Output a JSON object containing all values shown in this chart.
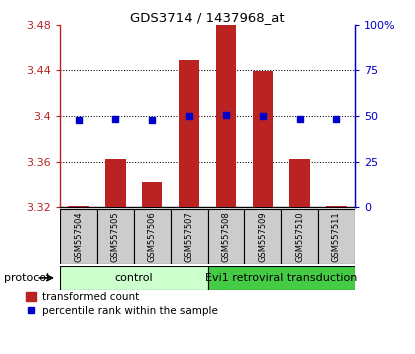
{
  "title": "GDS3714 / 1437968_at",
  "samples": [
    "GSM557504",
    "GSM557505",
    "GSM557506",
    "GSM557507",
    "GSM557508",
    "GSM557509",
    "GSM557510",
    "GSM557511"
  ],
  "bar_values": [
    3.321,
    3.362,
    3.342,
    3.449,
    3.481,
    3.439,
    3.362,
    3.321
  ],
  "dot_values": [
    3.396,
    3.397,
    3.396,
    3.4,
    3.401,
    3.4,
    3.397,
    3.397
  ],
  "bar_bottom": 3.32,
  "ylim_left": [
    3.32,
    3.48
  ],
  "ylim_right": [
    0,
    100
  ],
  "yticks_left": [
    3.32,
    3.36,
    3.4,
    3.44,
    3.48
  ],
  "ytick_labels_left": [
    "3.32",
    "3.36",
    "3.4",
    "3.44",
    "3.48"
  ],
  "yticks_right": [
    0,
    25,
    50,
    75,
    100
  ],
  "ytick_labels_right": [
    "0",
    "25",
    "50",
    "75",
    "100%"
  ],
  "bar_color": "#bb2222",
  "dot_color": "#0000cc",
  "control_samples": 4,
  "group_labels": [
    "control",
    "Evi1 retroviral transduction"
  ],
  "control_color": "#ccffcc",
  "evi1_color": "#44cc44",
  "sample_box_color": "#cccccc",
  "legend_bar_label": "transformed count",
  "legend_dot_label": "percentile rank within the sample",
  "protocol_label": "protocol"
}
